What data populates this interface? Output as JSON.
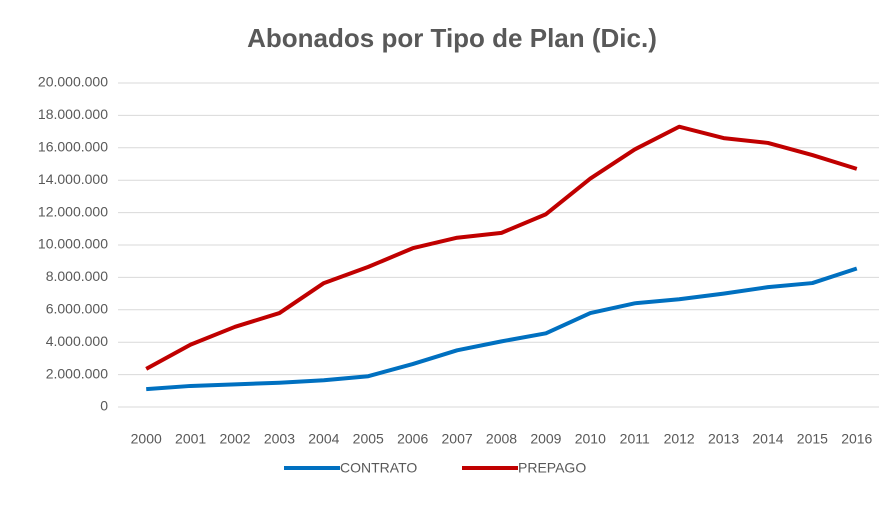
{
  "chart_data": {
    "type": "line",
    "title": "Abonados por Tipo de Plan (Dic.)",
    "categories": [
      "2000",
      "2001",
      "2002",
      "2003",
      "2004",
      "2005",
      "2006",
      "2007",
      "2008",
      "2009",
      "2010",
      "2011",
      "2012",
      "2013",
      "2014",
      "2015",
      "2016"
    ],
    "series": [
      {
        "name": "CONTRATO",
        "color": "#0070c0",
        "values": [
          1100000,
          1300000,
          1400000,
          1500000,
          1650000,
          1900000,
          2650000,
          3500000,
          4050000,
          4550000,
          5800000,
          6400000,
          6650000,
          7000000,
          7400000,
          7650000,
          8550000
        ]
      },
      {
        "name": "PREPAGO",
        "color": "#c00000",
        "values": [
          2350000,
          3850000,
          4950000,
          5800000,
          7650000,
          8650000,
          9800000,
          10450000,
          10750000,
          11900000,
          14100000,
          15900000,
          17300000,
          16600000,
          16300000,
          15550000,
          14700000
        ]
      }
    ],
    "ylim": [
      0,
      20000000
    ],
    "yticks": [
      0,
      {
        "value": 2000000,
        "label": "2.000.000"
      },
      {
        "value": 4000000,
        "label": "4.000.000"
      },
      {
        "value": 6000000,
        "label": "6.000.000"
      },
      {
        "value": 8000000,
        "label": "8.000.000"
      },
      {
        "value": 10000000,
        "label": "10.000.000"
      },
      {
        "value": 12000000,
        "label": "12.000.000"
      },
      {
        "value": 14000000,
        "label": "14.000.000"
      },
      {
        "value": 16000000,
        "label": "16.000.000"
      },
      {
        "value": 18000000,
        "label": "18.000.000"
      },
      {
        "value": 20000000,
        "label": "20.000.000"
      }
    ],
    "grid": true,
    "legend": "bottom"
  }
}
